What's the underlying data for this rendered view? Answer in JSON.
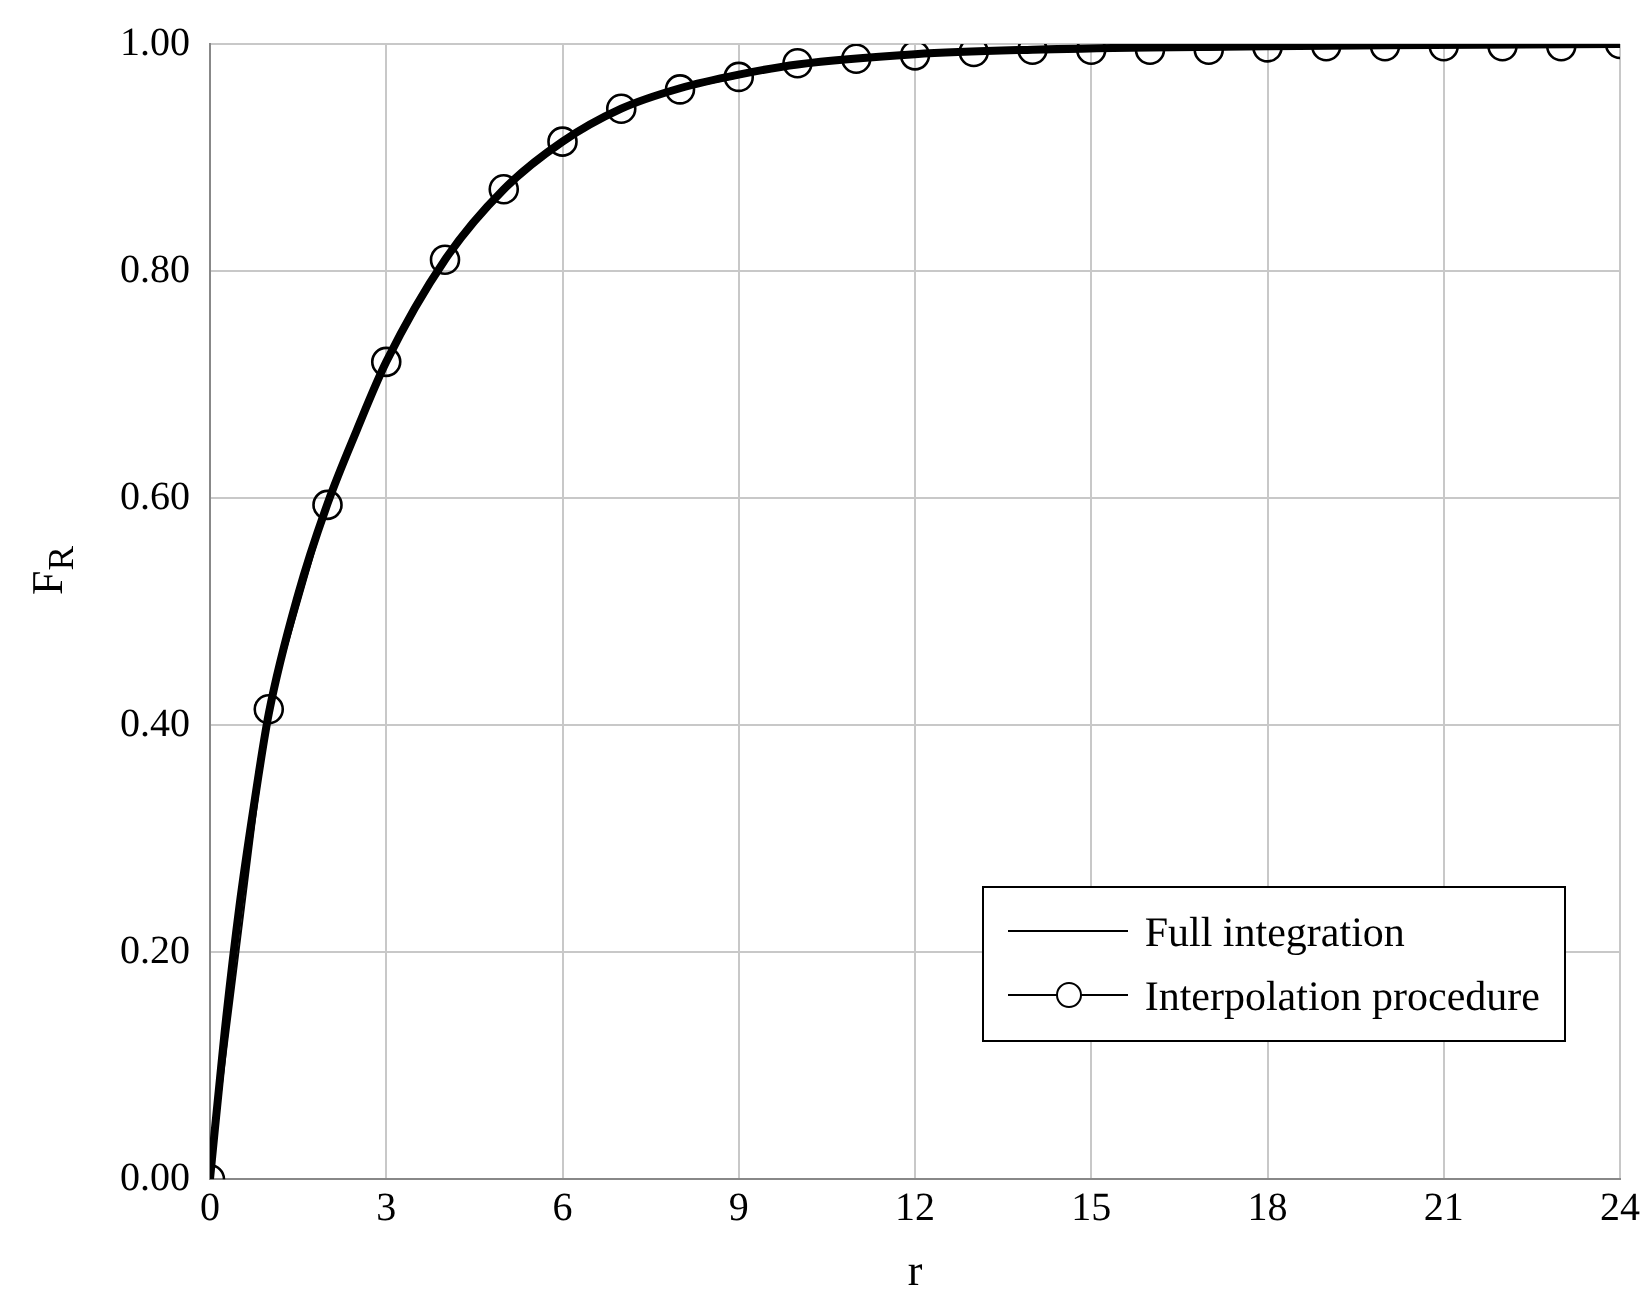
{
  "chart_data": {
    "type": "line",
    "xlabel": "r",
    "ylabel": "F$_{R}$",
    "xlim": [
      0,
      24
    ],
    "xticks": [
      0,
      3,
      6,
      9,
      12,
      15,
      18,
      21,
      24
    ],
    "ylim": [
      0,
      1
    ],
    "yticks": [
      {
        "value": 0,
        "label": "0.00"
      },
      {
        "value": 0.2,
        "label": "0.20"
      },
      {
        "value": 0.4,
        "label": "0.40"
      },
      {
        "value": 0.6,
        "label": "0.60"
      },
      {
        "value": 0.8,
        "label": "0.80"
      },
      {
        "value": 1,
        "label": "1.00"
      }
    ],
    "grid": true,
    "legend": "bottom right",
    "series": [
      {
        "name": "Full integration",
        "color": "#000000",
        "line_style": "solid",
        "x": [
          0,
          0.25,
          0.5,
          0.75,
          1,
          1.5,
          2,
          2.5,
          3,
          4,
          5,
          6,
          7,
          8,
          9,
          10,
          12,
          14,
          16,
          18,
          20,
          24
        ],
        "values": [
          0,
          0.13,
          0.24,
          0.33,
          0.41,
          0.515,
          0.595,
          0.66,
          0.72,
          0.81,
          0.872,
          0.914,
          0.943,
          0.961,
          0.973,
          0.982,
          0.991,
          0.995,
          0.997,
          0.998,
          0.999,
          1
        ]
      },
      {
        "name": "Interpolation procedure",
        "color": "#000000",
        "marker": "circle",
        "line_style": "solid",
        "x": [
          0,
          1,
          2,
          3,
          4,
          5,
          6,
          7,
          8,
          9,
          10,
          11,
          12,
          13,
          14,
          15,
          16,
          17,
          18,
          19,
          20,
          21,
          22,
          23,
          24
        ],
        "values": [
          0,
          0.414,
          0.594,
          0.72,
          0.81,
          0.872,
          0.914,
          0.943,
          0.96,
          0.971,
          0.983,
          0.987,
          0.99,
          0.993,
          0.995,
          0.995,
          0.995,
          0.995,
          0.997,
          0.998,
          0.998,
          0.998,
          0.998,
          0.998,
          1
        ]
      }
    ]
  }
}
